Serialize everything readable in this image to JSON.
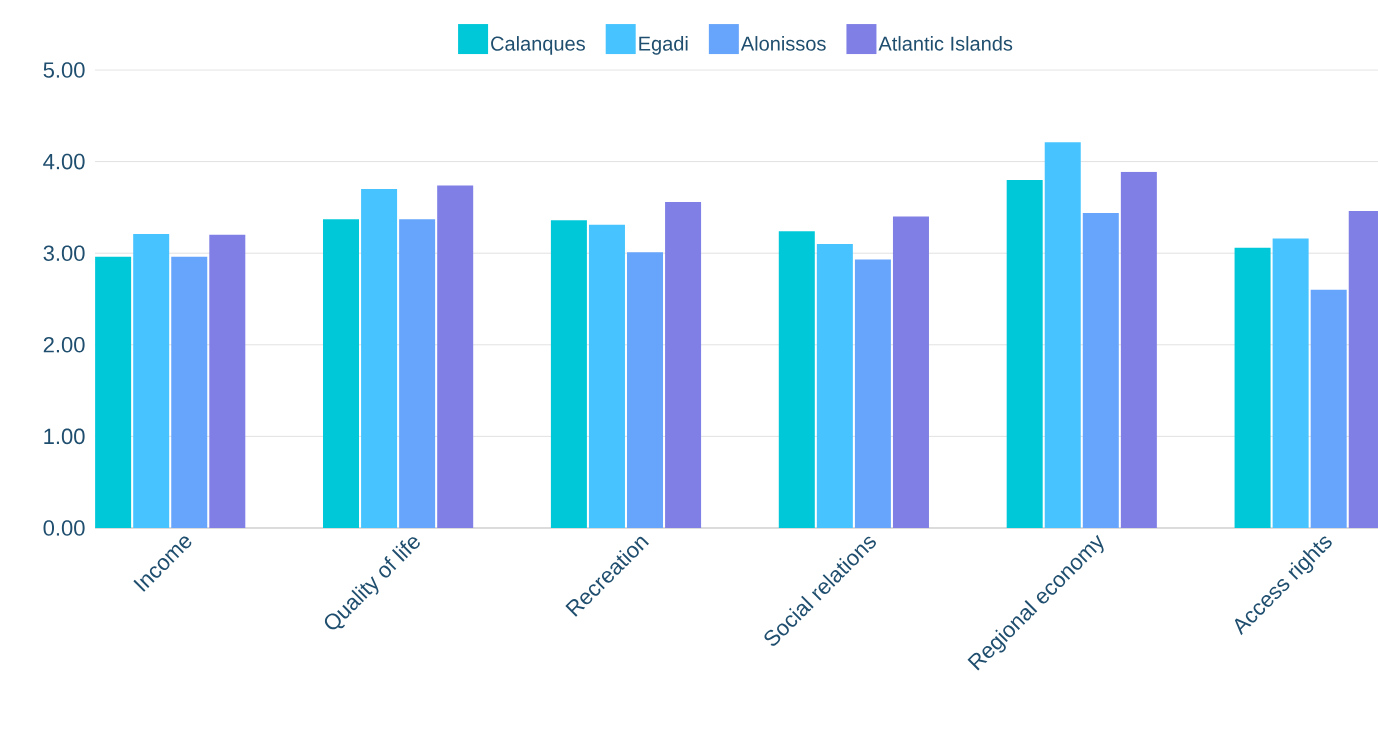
{
  "chart_data": {
    "type": "bar",
    "categories": [
      "Income",
      "Quality of life",
      "Recreation",
      "Social relations",
      "Regional economy",
      "Access rights"
    ],
    "series": [
      {
        "name": "Calanques",
        "color": "#00c8d8",
        "values": [
          2.96,
          3.37,
          3.36,
          3.24,
          3.8,
          3.06
        ]
      },
      {
        "name": "Egadi",
        "color": "#47c4ff",
        "values": [
          3.21,
          3.7,
          3.31,
          3.1,
          4.21,
          3.16
        ]
      },
      {
        "name": "Alonissos",
        "color": "#66a5fb",
        "values": [
          2.96,
          3.37,
          3.01,
          2.93,
          3.44,
          2.6
        ]
      },
      {
        "name": "Atlantic Islands",
        "color": "#7f7fe6",
        "values": [
          3.2,
          3.74,
          3.56,
          3.4,
          3.89,
          3.46
        ]
      }
    ],
    "ylim": [
      0,
      5
    ],
    "yticks": [
      {
        "value": 0,
        "label": "0.00"
      },
      {
        "value": 1,
        "label": "1.00"
      },
      {
        "value": 2,
        "label": "2.00"
      },
      {
        "value": 3,
        "label": "3.00"
      },
      {
        "value": 4,
        "label": "4.00"
      },
      {
        "value": 5,
        "label": "5.00"
      }
    ],
    "grid": "y",
    "legend": "top"
  }
}
